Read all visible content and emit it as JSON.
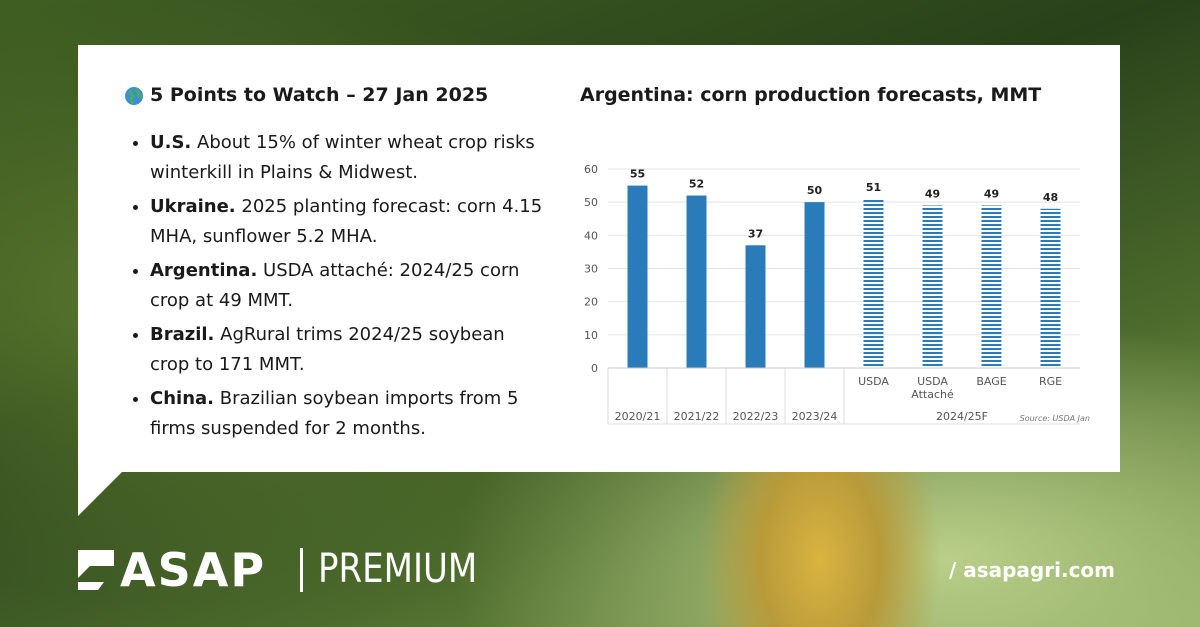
{
  "header": {
    "title": "5 Points to Watch – 27 Jan 2025"
  },
  "points": [
    {
      "lead": "U.S.",
      "text": "About 15% of winter wheat crop risks winterkill in Plains & Midwest."
    },
    {
      "lead": "Ukraine.",
      "text": "2025 planting forecast: corn 4.15 MHA, sunflower 5.2 MHA."
    },
    {
      "lead": "Argentina.",
      "text": "USDA attaché: 2024/25 corn crop at 49 MMT."
    },
    {
      "lead": "Brazil.",
      "text": "AgRural trims 2024/25 soybean crop to 171 MMT."
    },
    {
      "lead": "China.",
      "text": "Brazilian soybean imports from 5 firms suspended for 2 months."
    }
  ],
  "chart_data": {
    "type": "bar",
    "title": "Argentina: corn production forecasts, MMT",
    "categories": [
      "2020/21",
      "2021/22",
      "2022/23",
      "2023/24",
      "USDA",
      "USDA Attaché",
      "BAGE",
      "RGE"
    ],
    "series": [
      {
        "color": "#2a7bba",
        "values": [
          55,
          52,
          37,
          50,
          null,
          null,
          null,
          null
        ]
      },
      {
        "color": "#2a7bba",
        "pattern": "hatched",
        "values": [
          null,
          null,
          null,
          null,
          51,
          49,
          49,
          48
        ]
      }
    ],
    "group_label": "2024/25F",
    "source": "Source: USDA Jan",
    "ylim": [
      0,
      60
    ],
    "yticks": [
      0,
      10,
      20,
      30,
      40,
      50,
      60
    ],
    "grid": true
  },
  "footer": {
    "brand": "ASAP",
    "tier": "PREMIUM",
    "site": "/ asapagri.com"
  }
}
